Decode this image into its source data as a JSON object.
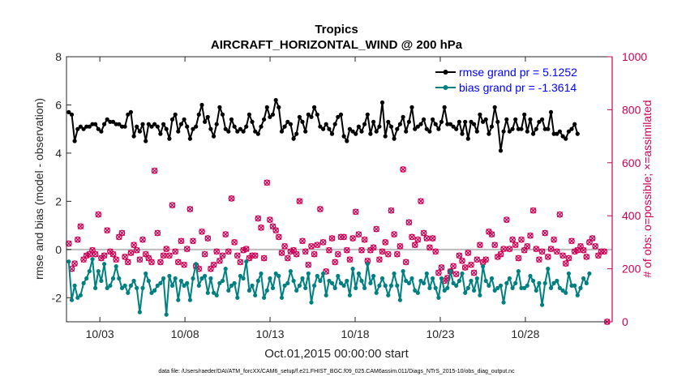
{
  "chart_data": {
    "type": "line",
    "title": "Tropics",
    "subtitle": "AIRCRAFT_HORIZONTAL_WIND @ 200 hPa",
    "xlabel": "Oct.01,2015 00:00:00 start",
    "ylabel_left": "rmse and bias (model - observation)",
    "ylabel_right": "# of obs: o=possible; ×=assimilated",
    "footer": "data file: /Users/raeder/DAI/ATM_forcXX/CAM6_setup/f.e21.FHIST_BGC.f09_025.CAM6assim.011/Diags_NTrS_2015-10/obs_diag_output.nc",
    "xlim": [
      1.04,
      33.1
    ],
    "ylim_left": [
      -3,
      8
    ],
    "ylim_right": [
      0,
      1000
    ],
    "xticks": [
      3,
      8,
      13,
      18,
      23,
      28
    ],
    "xtick_labels": [
      "10/03",
      "10/08",
      "10/13",
      "10/18",
      "10/23",
      "10/28"
    ],
    "yticks_left": [
      -2,
      0,
      2,
      4,
      6,
      8
    ],
    "yticks_right": [
      0,
      200,
      400,
      600,
      800,
      1000
    ],
    "colors": {
      "rmse": "#000000",
      "bias": "#008080",
      "obs": "#cc0055",
      "legend_text": "#0000ff",
      "zero_line": "#bbbbbb"
    },
    "series": [
      {
        "name": "rmse grand pr = 5.1252",
        "values": [
          5.7,
          5.6,
          4.5,
          5.0,
          5.1,
          5.0,
          5.1,
          5.1,
          5.2,
          5.2,
          5.0,
          4.9,
          5.2,
          5.4,
          5.3,
          5.3,
          5.2,
          5.2,
          5.1,
          5.1,
          5.6,
          5.7,
          4.7,
          5.1,
          4.9,
          5.2,
          4.5,
          5.2,
          5.1,
          5.2,
          5.1,
          4.8,
          5.2,
          5.0,
          4.6,
          5.4,
          5.6,
          4.9,
          5.2,
          5.4,
          5.1,
          4.6,
          5.0,
          5.1,
          5.6,
          6.0,
          5.3,
          5.5,
          5.0,
          4.7,
          5.2,
          5.9,
          5.6,
          5.0,
          4.9,
          5.4,
          5.1,
          4.9,
          5.0,
          4.9,
          5.1,
          5.6,
          5.3,
          4.9,
          4.8,
          5.1,
          5.4,
          5.9,
          5.5,
          5.6,
          6.2,
          5.9,
          4.9,
          5.1,
          5.3,
          5.2,
          4.6,
          4.8,
          5.5,
          5.3,
          4.9,
          5.6,
          5.5,
          5.9,
          5.6,
          5.1,
          5.0,
          5.2,
          5.0,
          4.8,
          5.2,
          5.5,
          5.6,
          4.7,
          4.5,
          5.0,
          4.9,
          4.8,
          5.1,
          4.9,
          5.2,
          5.6,
          4.8,
          5.3,
          4.9,
          5.1,
          6.1,
          4.7,
          5.3,
          5.1,
          4.6,
          5.0,
          5.2,
          5.5,
          4.9,
          5.3,
          5.9,
          5.0,
          5.1,
          5.2,
          5.4,
          5.0,
          4.9,
          5.4,
          5.2,
          5.0,
          5.3,
          5.9,
          5.2,
          5.2,
          5.1,
          5.0,
          5.3,
          4.8,
          5.3,
          4.6,
          5.3,
          5.2,
          4.9,
          5.6,
          5.3,
          5.4,
          4.8,
          5.1,
          5.9,
          5.3,
          4.1,
          4.9,
          5.4,
          4.9,
          5.0,
          5.4,
          5.0,
          5.0,
          5.6,
          4.9,
          5.4,
          4.8,
          5.0,
          5.3,
          5.4,
          5.0,
          5.0,
          5.7,
          4.8,
          4.8,
          4.9,
          4.7,
          4.6,
          4.9,
          5.0,
          5.2,
          4.8
        ]
      },
      {
        "name": "bias grand pr = -1.3614",
        "values": [
          -0.5,
          -2.1,
          -1.5,
          -2.0,
          -1.9,
          -1.4,
          -1.2,
          -0.9,
          -0.4,
          -1.6,
          -0.9,
          -1.3,
          -0.6,
          -1.6,
          -1.5,
          -1.2,
          -0.7,
          -1.2,
          -1.6,
          -1.5,
          -1.8,
          -1.5,
          -1.3,
          -1.6,
          -2.6,
          -1.6,
          -1.0,
          -1.3,
          -1.8,
          -1.7,
          -1.5,
          -1.4,
          -1.2,
          -2.7,
          -1.1,
          -1.5,
          -1.2,
          -2.1,
          -1.3,
          -1.5,
          -1.4,
          -2.1,
          -1.2,
          -0.6,
          -1.5,
          -1.2,
          -1.1,
          -1.8,
          -1.2,
          -1.8,
          -1.9,
          -1.4,
          -1.3,
          -0.8,
          -1.7,
          -1.5,
          -1.4,
          -2.0,
          -1.1,
          -1.2,
          -0.5,
          -1.7,
          -1.5,
          -1.9,
          -1.3,
          -1.0,
          -2.0,
          -1.7,
          -1.2,
          -1.6,
          -1.0,
          -1.1,
          -2.0,
          -1.5,
          -1.4,
          -0.9,
          -1.3,
          -1.7,
          -1.5,
          -1.2,
          -1.6,
          -1.0,
          -2.2,
          -1.5,
          -1.1,
          -1.3,
          -1.0,
          -1.9,
          -1.3,
          -1.4,
          -1.6,
          -1.1,
          -1.4,
          -1.5,
          -1.3,
          -1.9,
          -0.8,
          -1.6,
          -1.0,
          -1.3,
          -1.6,
          -0.6,
          -1.4,
          -1.1,
          -1.8,
          -1.5,
          -1.2,
          -1.5,
          -1.9,
          -1.5,
          -1.0,
          -1.5,
          -2.1,
          -0.9,
          -1.3,
          -1.4,
          -1.2,
          -1.7,
          -1.8,
          -1.3,
          -1.4,
          -1.0,
          -1.6,
          -1.2,
          -1.6,
          -2.0,
          -1.2,
          -1.7,
          -1.6,
          -0.9,
          -1.4,
          -1.5,
          -1.3,
          -1.0,
          -1.8,
          -1.6,
          -1.3,
          -1.7,
          -1.2,
          -1.9,
          -0.7,
          -1.3,
          -1.5,
          -1.2,
          -1.7,
          -1.6,
          -1.5,
          -2.2,
          -1.4,
          -1.2,
          -1.6,
          -1.4,
          -0.9,
          -1.6,
          -1.6,
          -1.5,
          -1.1,
          -1.3,
          -1.7,
          -1.4,
          -2.3,
          -1.4,
          -0.8,
          -1.6,
          -1.4,
          -1.3,
          -1.6,
          -1.7,
          -1.8,
          -1.0,
          -1.5,
          -1.5,
          -1.9,
          -1.6,
          -1.2,
          -1.4,
          -1.0
        ]
      },
      {
        "name": "obs possible",
        "values": [
          295,
          200,
          220,
          310,
          360,
          235,
          250,
          255,
          270,
          255,
          405,
          240,
          250,
          345,
          265,
          255,
          235,
          320,
          335,
          245,
          225,
          260,
          290,
          270,
          235,
          310,
          255,
          240,
          225,
          570,
          335,
          225,
          250,
          275,
          250,
          440,
          265,
          225,
          305,
          215,
          275,
          425,
          305,
          210,
          200,
          340,
          255,
          315,
          200,
          215,
          265,
          230,
          250,
          330,
          265,
          465,
          300,
          250,
          225,
          270,
          275,
          240,
          250,
          250,
          390,
          355,
          240,
          525,
          385,
          360,
          345,
          320,
          260,
          285,
          240,
          265,
          270,
          255,
          455,
          305,
          265,
          215,
          285,
          255,
          290,
          425,
          300,
          190,
          270,
          315,
          225,
          255,
          320,
          320,
          270,
          235,
          315,
          415,
          330,
          270,
          310,
          230,
          270,
          280,
          350,
          235,
          265,
          300,
          255,
          420,
          330,
          255,
          285,
          575,
          225,
          375,
          320,
          290,
          310,
          455,
          335,
          315,
          280,
          315,
          265,
          185,
          205,
          155,
          165,
          190,
          210,
          180,
          250,
          230,
          205,
          260,
          215,
          185,
          235,
          290,
          225,
          235,
          340,
          330,
          290,
          245,
          255,
          275,
          385,
          275,
          310,
          290,
          240,
          310,
          270,
          285,
          325,
          420,
          275,
          235,
          265,
          335,
          245,
          275,
          310,
          265,
          405,
          250,
          220,
          240,
          305,
          265,
          270,
          285,
          270,
          245,
          300,
          315,
          285,
          250,
          265,
          265,
          0
        ]
      }
    ]
  }
}
